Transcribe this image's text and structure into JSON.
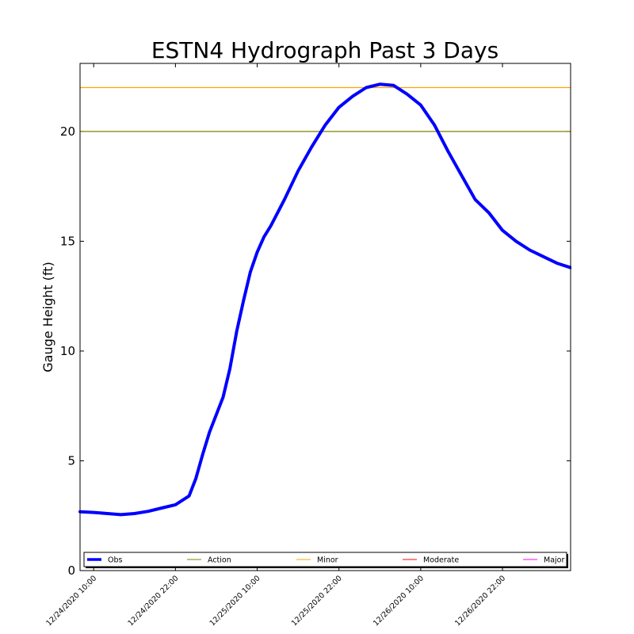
{
  "chart_data": {
    "type": "line",
    "title": "ESTN4 Hydrograph Past 3 Days",
    "ylabel": "Gauge Height (ft)",
    "xlabel": "",
    "ylim": [
      0,
      23.1
    ],
    "yticks": [
      0,
      5,
      10,
      15,
      20
    ],
    "xlim": [
      "12/24/2020 08:00",
      "12/27/2020 08:00"
    ],
    "xticks": [
      "12/24/2020 10:00",
      "12/24/2020 22:00",
      "12/25/2020 10:00",
      "12/25/2020 22:00",
      "12/26/2020 10:00",
      "12/26/2020 22:00"
    ],
    "grid": false,
    "legend_position": "bottom",
    "series": [
      {
        "name": "Obs",
        "color": "#0000ff",
        "x": [
          "12/24/2020 08:00",
          "12/24/2020 10:00",
          "12/24/2020 12:00",
          "12/24/2020 14:00",
          "12/24/2020 16:00",
          "12/24/2020 18:00",
          "12/24/2020 20:00",
          "12/24/2020 22:00",
          "12/25/2020 00:00",
          "12/25/2020 01:00",
          "12/25/2020 02:00",
          "12/25/2020 03:00",
          "12/25/2020 04:00",
          "12/25/2020 05:00",
          "12/25/2020 06:00",
          "12/25/2020 07:00",
          "12/25/2020 08:00",
          "12/25/2020 09:00",
          "12/25/2020 10:00",
          "12/25/2020 11:00",
          "12/25/2020 12:00",
          "12/25/2020 13:00",
          "12/25/2020 14:00",
          "12/25/2020 16:00",
          "12/25/2020 18:00",
          "12/25/2020 20:00",
          "12/25/2020 22:00",
          "12/26/2020 00:00",
          "12/26/2020 02:00",
          "12/26/2020 04:00",
          "12/26/2020 06:00",
          "12/26/2020 08:00",
          "12/26/2020 10:00",
          "12/26/2020 12:00",
          "12/26/2020 14:00",
          "12/26/2020 16:00",
          "12/26/2020 18:00",
          "12/26/2020 20:00",
          "12/26/2020 22:00",
          "12/27/2020 00:00",
          "12/27/2020 02:00",
          "12/27/2020 04:00",
          "12/27/2020 06:00",
          "12/27/2020 08:00"
        ],
        "y": [
          2.68,
          2.65,
          2.6,
          2.55,
          2.6,
          2.7,
          2.85,
          3.0,
          3.4,
          4.2,
          5.3,
          6.3,
          7.1,
          7.9,
          9.2,
          10.9,
          12.3,
          13.6,
          14.5,
          15.2,
          15.7,
          16.3,
          16.9,
          18.2,
          19.3,
          20.3,
          21.1,
          21.6,
          22.0,
          22.15,
          22.1,
          21.7,
          21.2,
          20.3,
          19.1,
          18.0,
          16.9,
          16.3,
          15.5,
          15.0,
          14.6,
          14.3,
          14.0,
          13.8
        ]
      }
    ],
    "thresholds": [
      {
        "name": "Action",
        "color": "#808000",
        "value": 20
      },
      {
        "name": "Minor",
        "color": "#ffa500",
        "value": 22
      },
      {
        "name": "Moderate",
        "color": "#ff0000",
        "value": null
      },
      {
        "name": "Major",
        "color": "#ff00ff",
        "value": null
      }
    ],
    "legend": [
      "Obs",
      "Action",
      "Minor",
      "Moderate",
      "Major"
    ]
  }
}
